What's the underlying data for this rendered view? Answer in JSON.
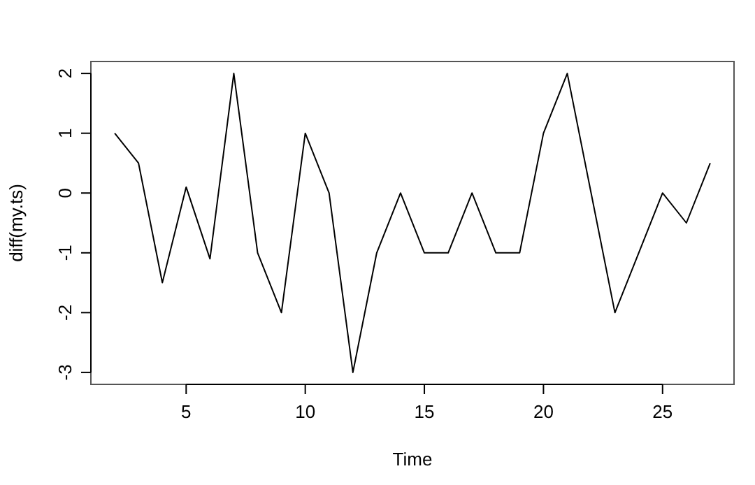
{
  "chart_data": {
    "type": "line",
    "xlabel": "Time",
    "ylabel": "diff(my.ts)",
    "x": [
      2,
      3,
      4,
      5,
      6,
      7,
      8,
      9,
      10,
      11,
      12,
      13,
      14,
      15,
      16,
      17,
      18,
      19,
      20,
      21,
      22,
      23,
      24,
      25,
      26,
      27
    ],
    "series": [
      {
        "color": "#000000",
        "values": [
          1,
          0.5,
          -1.5,
          0.1,
          -1.1,
          2,
          -1,
          -2,
          1,
          0,
          -3,
          -1,
          0,
          -1,
          -1,
          0,
          -1,
          -1,
          1,
          2,
          0,
          -2,
          -1,
          0,
          -0.5,
          0.5
        ]
      }
    ],
    "xlim": [
      1,
      28
    ],
    "ylim": [
      -3.2,
      2.2
    ],
    "xticks": [
      5,
      10,
      15,
      20,
      25
    ],
    "yticks": [
      -3,
      -2,
      -1,
      0,
      1,
      2
    ],
    "grid": false,
    "marker": "none",
    "line_style": "solid"
  }
}
